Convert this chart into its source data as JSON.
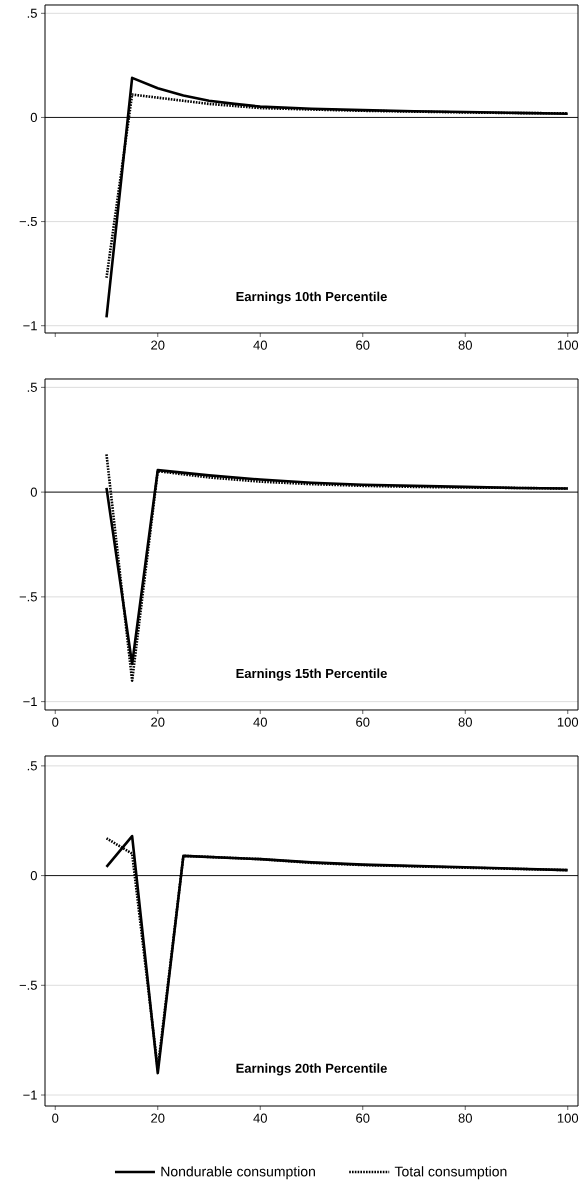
{
  "chart_data": [
    {
      "type": "line",
      "title": "Earnings 10th Percentile",
      "xlim": [
        -2,
        102
      ],
      "ylim": [
        -1.035,
        0.54
      ],
      "xticks": [
        {
          "value": 0,
          "label": null
        },
        20,
        40,
        60,
        80,
        100
      ],
      "yticks": [
        {
          "value": 0.5,
          "label": ".5"
        },
        0,
        {
          "value": -0.5,
          "label": "−.5"
        },
        {
          "value": -1,
          "label": "−1"
        }
      ],
      "grid": "y",
      "ref_lines": [
        {
          "axis": "y",
          "value": 0,
          "color": "#000000"
        }
      ],
      "series": [
        {
          "color": "#000000",
          "line_style": "solid",
          "x": [
            10,
            15,
            20,
            25,
            30,
            35,
            40,
            50,
            60,
            70,
            80,
            90,
            100
          ],
          "values": [
            -0.96,
            0.19,
            0.14,
            0.105,
            0.08,
            0.065,
            0.052,
            0.042,
            0.035,
            0.03,
            0.026,
            0.022,
            0.018
          ]
        },
        {
          "color": "#000000",
          "line_style": "dotted",
          "x": [
            10,
            15,
            20,
            25,
            30,
            40,
            50,
            60,
            70,
            80,
            90,
            100
          ],
          "values": [
            -0.77,
            0.11,
            0.095,
            0.08,
            0.065,
            0.045,
            0.038,
            0.032,
            0.028,
            0.024,
            0.021,
            0.02
          ]
        }
      ]
    },
    {
      "type": "line",
      "title": "Earnings 15th Percentile",
      "xlim": [
        -2,
        102
      ],
      "ylim": [
        -1.04,
        0.54
      ],
      "xticks": [
        0,
        20,
        40,
        60,
        80,
        100
      ],
      "yticks": [
        {
          "value": 0.5,
          "label": ".5"
        },
        0,
        {
          "value": -0.5,
          "label": "−.5"
        },
        {
          "value": -1,
          "label": "−1"
        }
      ],
      "grid": "y",
      "ref_lines": [
        {
          "axis": "y",
          "value": 0,
          "color": "#000000"
        }
      ],
      "series": [
        {
          "color": "#000000",
          "line_style": "solid",
          "x": [
            10,
            15,
            20,
            30,
            40,
            50,
            60,
            70,
            80,
            90,
            100
          ],
          "values": [
            0.02,
            -0.82,
            0.105,
            0.08,
            0.06,
            0.045,
            0.035,
            0.03,
            0.025,
            0.02,
            0.017
          ]
        },
        {
          "color": "#000000",
          "line_style": "dotted",
          "x": [
            10,
            15,
            20,
            30,
            40,
            50,
            60,
            70,
            80,
            90,
            100
          ],
          "values": [
            0.18,
            -0.9,
            0.1,
            0.07,
            0.05,
            0.038,
            0.03,
            0.025,
            0.022,
            0.02,
            0.017
          ]
        }
      ]
    },
    {
      "type": "line",
      "title": "Earnings 20th Percentile",
      "xlim": [
        -2,
        102
      ],
      "ylim": [
        -1.05,
        0.545
      ],
      "xticks": [
        0,
        20,
        40,
        60,
        80,
        100
      ],
      "yticks": [
        {
          "value": 0.5,
          "label": ".5"
        },
        0,
        {
          "value": -0.5,
          "label": "−.5"
        },
        {
          "value": -1,
          "label": "−1"
        }
      ],
      "grid": "y",
      "ref_lines": [
        {
          "axis": "y",
          "value": 0,
          "color": "#000000"
        }
      ],
      "legend": "bottom",
      "series": [
        {
          "name": "Nondurable consumption",
          "color": "#000000",
          "line_style": "solid",
          "x": [
            10,
            15,
            20,
            25,
            40,
            50,
            60,
            80,
            100
          ],
          "values": [
            0.04,
            0.18,
            -0.9,
            0.09,
            0.075,
            0.06,
            0.05,
            0.038,
            0.025
          ]
        },
        {
          "name": "Total consumption",
          "color": "#000000",
          "line_style": "dotted",
          "x": [
            10,
            15,
            20,
            25,
            40,
            50,
            60,
            80,
            100
          ],
          "values": [
            0.17,
            0.1,
            -0.88,
            0.09,
            0.075,
            0.058,
            0.048,
            0.036,
            0.025
          ]
        }
      ]
    }
  ]
}
